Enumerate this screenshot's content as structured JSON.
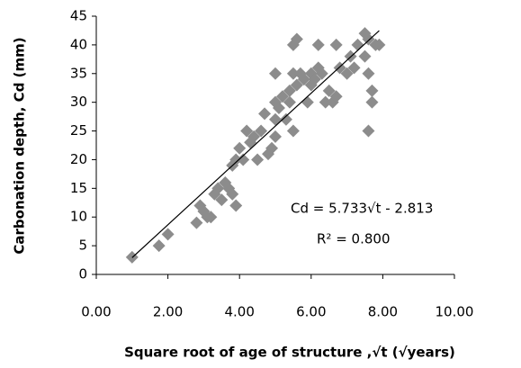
{
  "chart_data": {
    "type": "scatter",
    "x_label": "Square root of age of structure ,√t (√years)",
    "y_label": "Carbonation depth, Cd (mm)",
    "annotations": [
      "Cd = 5.733√t - 2.813",
      "R² = 0.800"
    ],
    "xlim": [
      0,
      10
    ],
    "ylim": [
      0,
      45
    ],
    "xticks": [
      {
        "value": 0,
        "label": "0.00"
      },
      {
        "value": 2,
        "label": "2.00"
      },
      {
        "value": 4,
        "label": "4.00"
      },
      {
        "value": 6,
        "label": "6.00"
      },
      {
        "value": 8,
        "label": "8.00"
      },
      {
        "value": 10,
        "label": "10.00"
      }
    ],
    "yticks": [
      0,
      5,
      10,
      15,
      20,
      25,
      30,
      35,
      40,
      45
    ],
    "grid": false,
    "series": [
      {
        "color": "#8c8c8c",
        "x": [
          1.0,
          1.75,
          2.0,
          2.8,
          2.9,
          3.0,
          3.1,
          3.2,
          3.3,
          3.4,
          3.5,
          3.6,
          3.7,
          3.8,
          3.8,
          3.9,
          3.9,
          4.0,
          4.1,
          4.2,
          4.3,
          4.4,
          4.5,
          4.6,
          4.7,
          4.8,
          4.9,
          5.0,
          5.0,
          5.0,
          5.0,
          5.1,
          5.2,
          5.3,
          5.4,
          5.4,
          5.5,
          5.5,
          5.5,
          5.6,
          5.6,
          5.7,
          5.8,
          5.9,
          6.0,
          6.0,
          6.1,
          6.2,
          6.2,
          6.3,
          6.4,
          6.5,
          6.6,
          6.7,
          6.7,
          6.8,
          7.0,
          7.1,
          7.2,
          7.3,
          7.5,
          7.5,
          7.6,
          7.6,
          7.7,
          7.7,
          7.8,
          7.9,
          7.6
        ],
        "values": [
          3,
          5,
          7,
          9,
          12,
          11,
          10,
          10,
          14,
          15,
          13,
          16,
          15,
          14,
          19,
          12,
          20,
          22,
          20,
          25,
          23,
          24,
          20,
          25,
          28,
          21,
          22,
          24,
          27,
          30,
          35,
          29,
          31,
          27,
          32,
          30,
          25,
          35,
          40,
          41,
          33,
          35,
          34,
          30,
          33,
          35,
          34,
          36,
          40,
          35,
          30,
          32,
          30,
          31,
          40,
          36,
          35,
          38,
          36,
          40,
          42,
          38,
          25,
          35,
          30,
          32,
          40,
          40,
          41
        ]
      }
    ],
    "trendline": {
      "color": "#000000",
      "x": [
        1.0,
        7.9
      ],
      "values": [
        2.92,
        42.48
      ]
    }
  }
}
